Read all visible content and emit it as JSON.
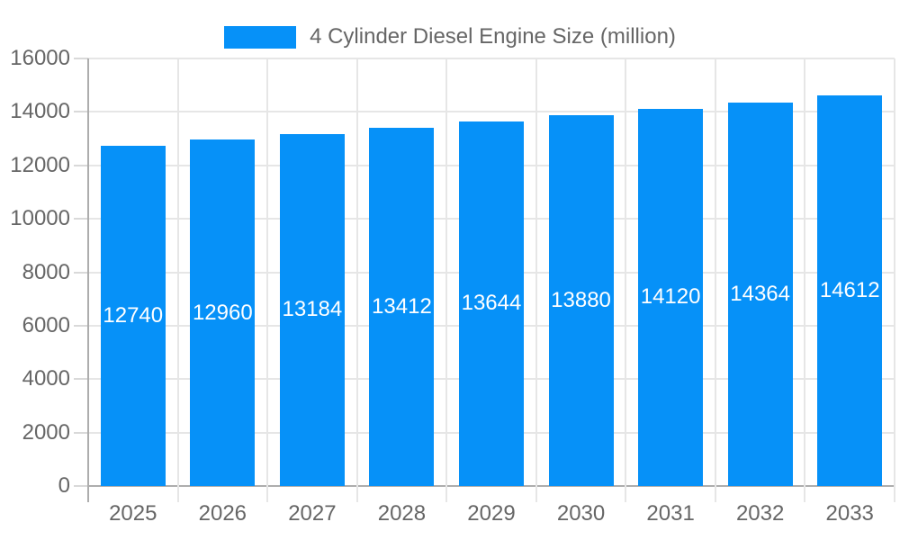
{
  "legend": {
    "label": "4 Cylinder Diesel Engine Size (million)"
  },
  "chart_data": {
    "type": "bar",
    "title": "4 Cylinder Diesel Engine Size (million)",
    "categories": [
      "2025",
      "2026",
      "2027",
      "2028",
      "2029",
      "2030",
      "2031",
      "2032",
      "2033"
    ],
    "values": [
      12740,
      12960,
      13184,
      13412,
      13644,
      13880,
      14120,
      14364,
      14612
    ],
    "series": [
      {
        "name": "4 Cylinder Diesel Engine Size (million)",
        "values": [
          12740,
          12960,
          13184,
          13412,
          13644,
          13880,
          14120,
          14364,
          14612
        ]
      }
    ],
    "xlabel": "",
    "ylabel": "",
    "ylim": [
      0,
      16000
    ],
    "y_ticks": [
      0,
      2000,
      4000,
      6000,
      8000,
      10000,
      12000,
      14000,
      16000
    ],
    "grid": true,
    "legend_position": "top",
    "bar_value_labels_visible": true,
    "colors": {
      "bar": "#0691F8",
      "value_label": "#FFFFFF",
      "axis_text": "#666666",
      "legend_text": "#666666",
      "gridline": "#E6E6E6",
      "axis_line": "#ADADAD",
      "y_tick": "#D9D9D9",
      "background": "#FFFFFF"
    }
  }
}
